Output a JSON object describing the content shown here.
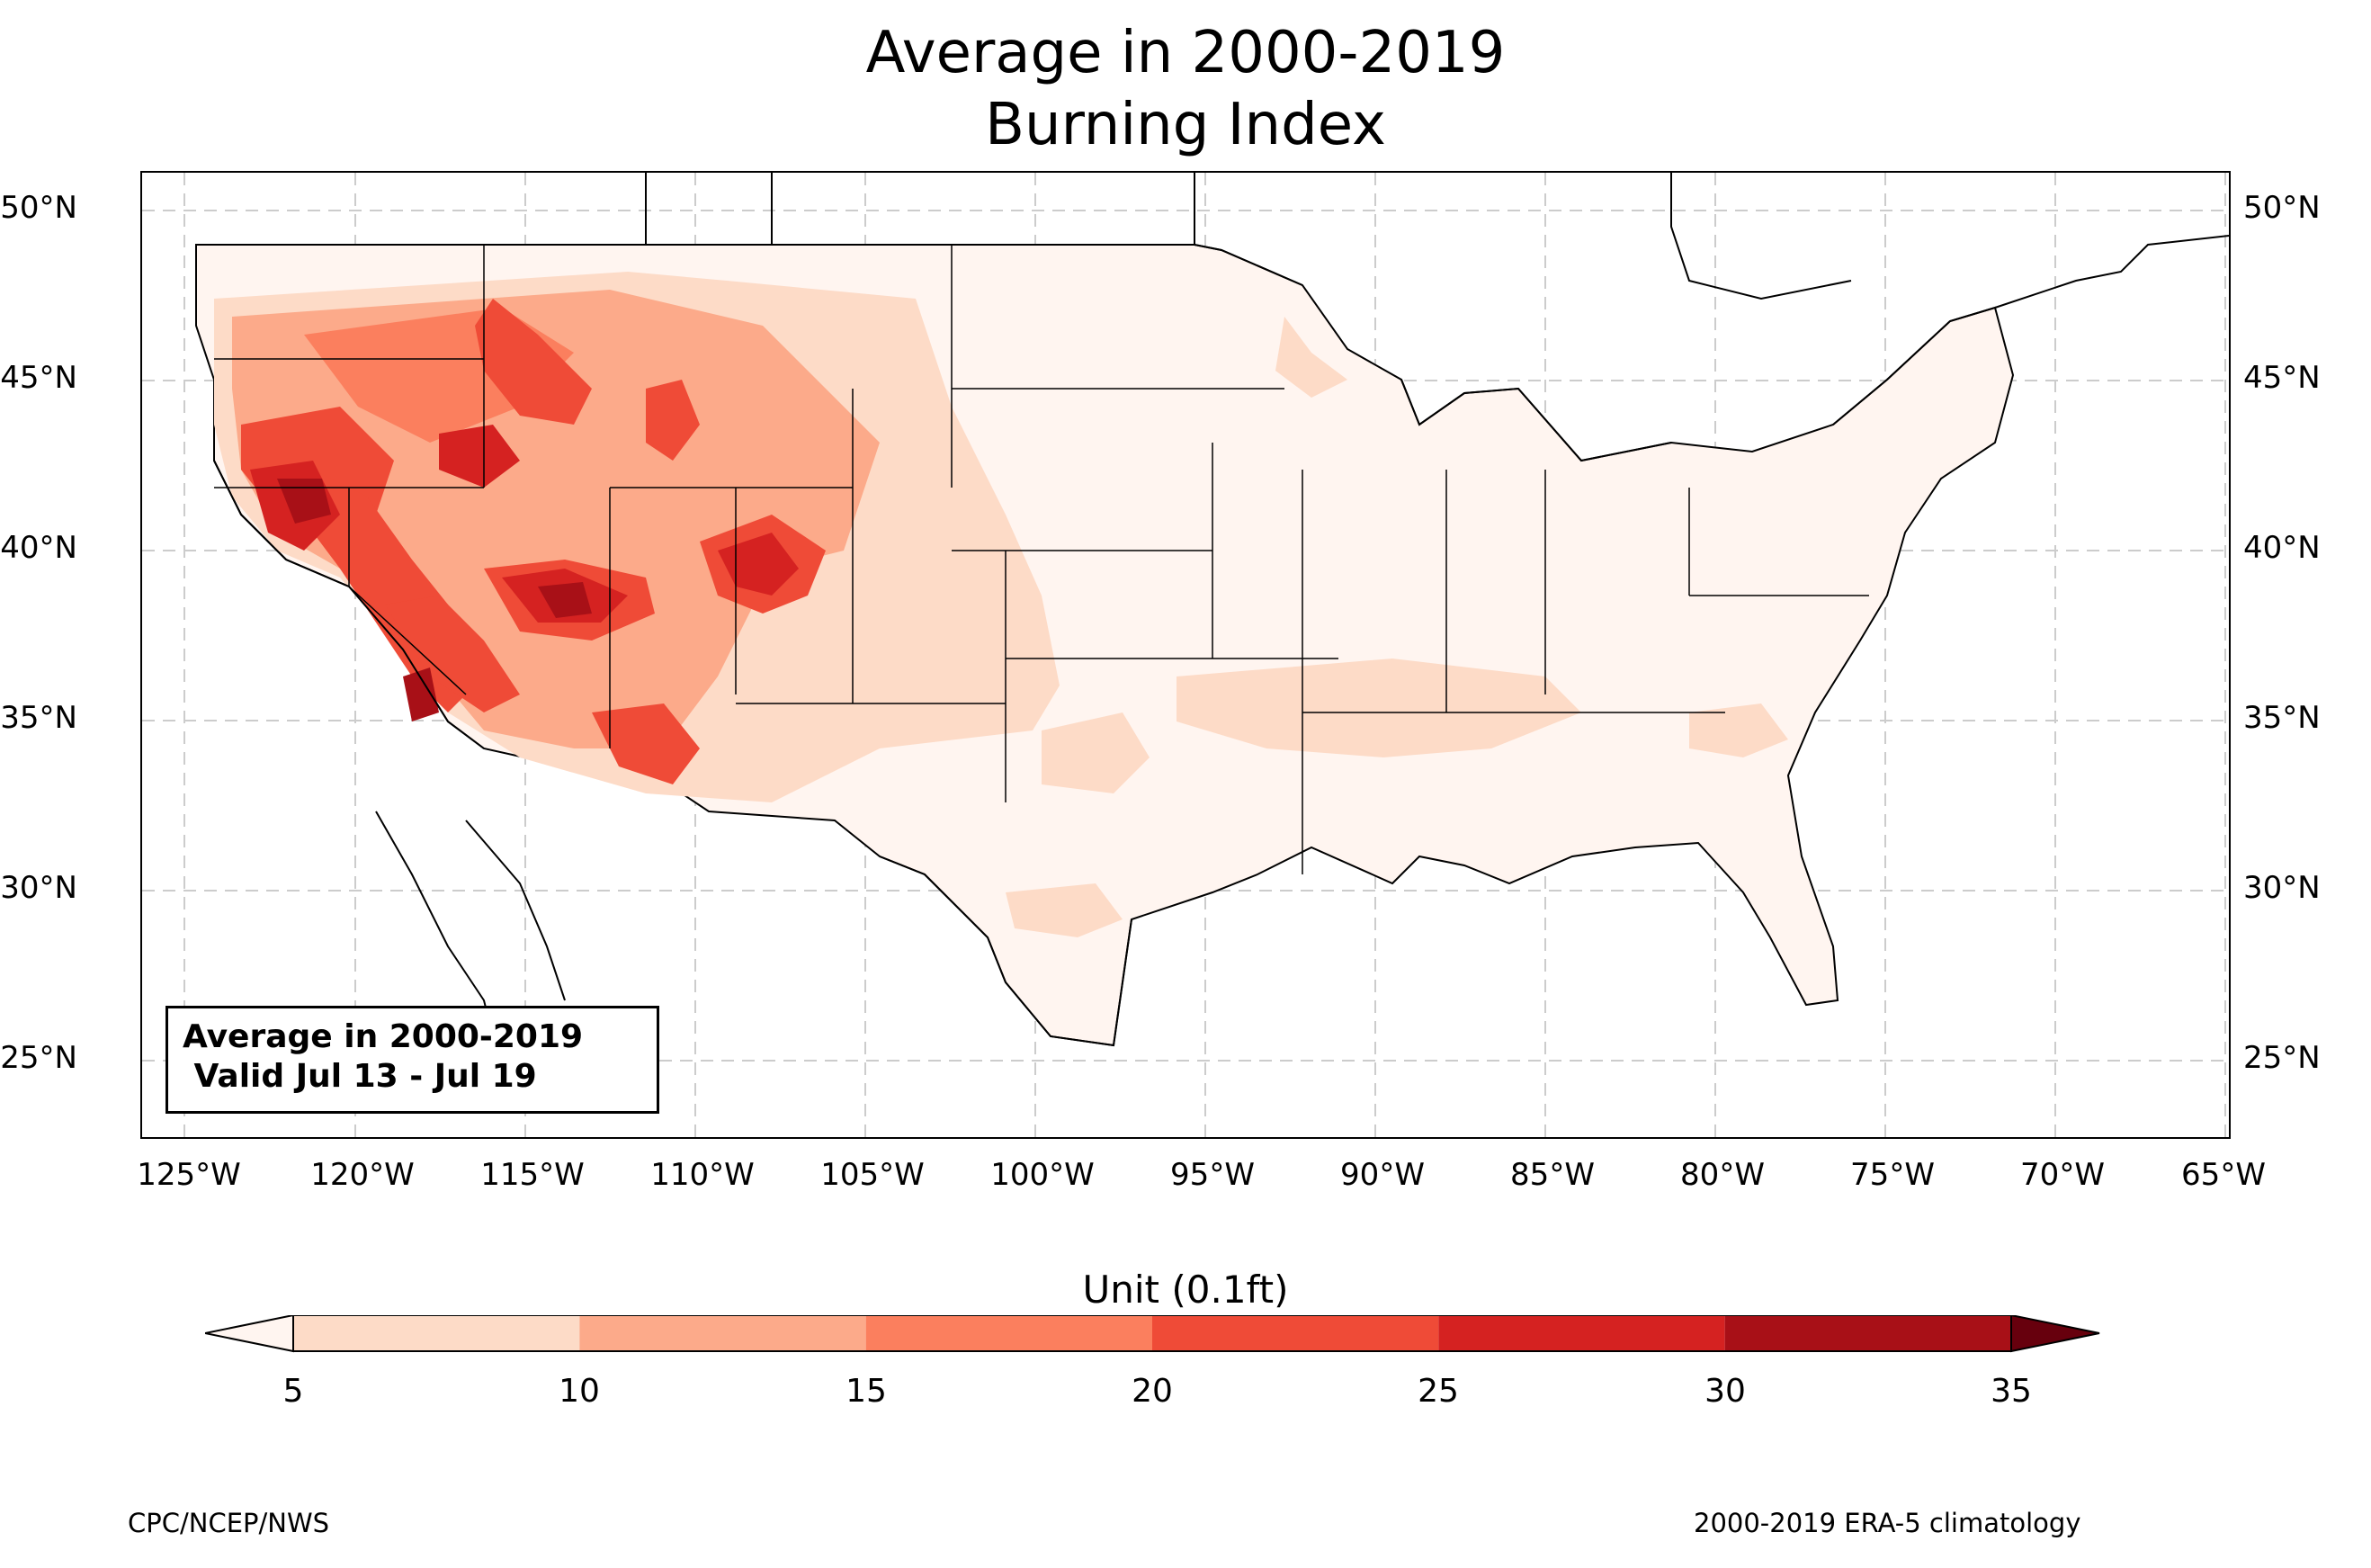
{
  "title": {
    "line1": "Average in 2000-2019",
    "line2": "Burning Index"
  },
  "info_box": {
    "line1": "Average in 2000-2019",
    "line2": " Valid Jul 13 - Jul 19"
  },
  "colorbar": {
    "label": "Unit (0.1ft)",
    "ticks": [
      "5",
      "10",
      "15",
      "20",
      "25",
      "30",
      "35"
    ],
    "bins": [
      {
        "range": [
          5,
          10
        ],
        "color": "#fddbc7"
      },
      {
        "range": [
          10,
          15
        ],
        "color": "#fcaa8a"
      },
      {
        "range": [
          15,
          20
        ],
        "color": "#fb7f5e"
      },
      {
        "range": [
          20,
          25
        ],
        "color": "#ef4b37"
      },
      {
        "range": [
          25,
          30
        ],
        "color": "#d52221"
      },
      {
        "range": [
          30,
          35
        ],
        "color": "#a81017"
      }
    ],
    "under_color": "#fff5f0",
    "over_color": "#67000d"
  },
  "credits": {
    "left": "CPC/NCEP/NWS",
    "right": "2000-2019 ERA-5 climatology"
  },
  "map": {
    "y_ticks_left": [
      "50°N",
      "45°N",
      "40°N",
      "35°N",
      "30°N",
      "25°N"
    ],
    "y_ticks_right": [
      "50°N",
      "45°N",
      "40°N",
      "35°N",
      "30°N",
      "25°N"
    ],
    "x_ticks": [
      "125°W",
      "120°W",
      "115°W",
      "110°W",
      "105°W",
      "100°W",
      "95°W",
      "90°W",
      "85°W",
      "80°W",
      "75°W",
      "70°W",
      "65°W"
    ]
  }
}
